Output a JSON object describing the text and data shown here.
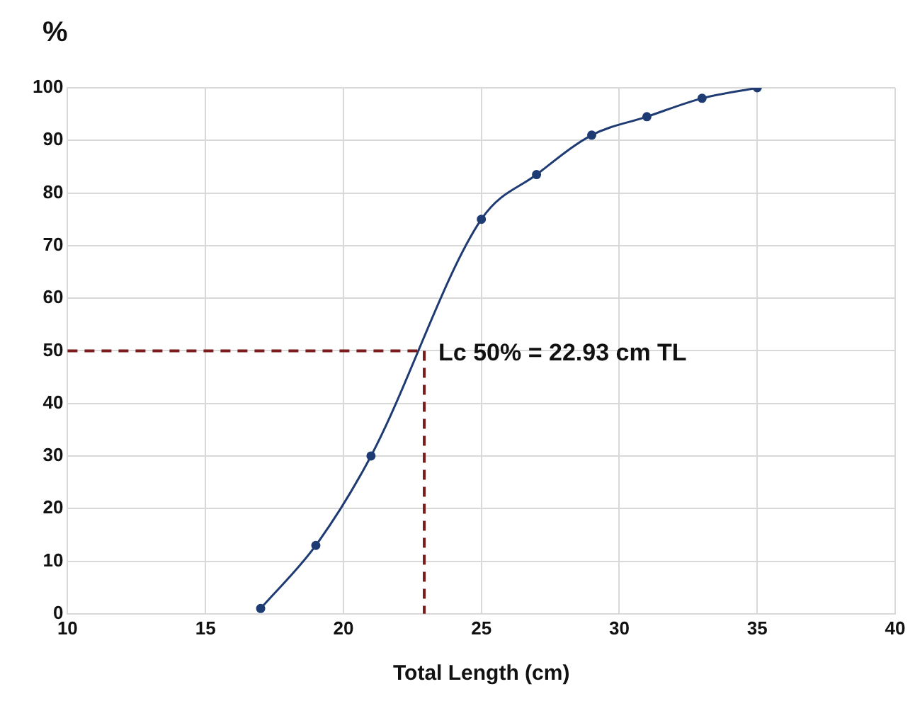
{
  "chart_data": {
    "type": "line",
    "xlabel": "Total Length (cm)",
    "ylabel": "%",
    "x": [
      17,
      19,
      21,
      25,
      27,
      29,
      31,
      33,
      35
    ],
    "series": [
      {
        "color": "#1f3b73",
        "values": [
          1,
          13,
          30,
          75,
          83.5,
          91,
          94.5,
          98,
          100
        ]
      }
    ],
    "xlim": [
      10,
      40
    ],
    "xticks": [
      10,
      15,
      20,
      25,
      30,
      35,
      40
    ],
    "ylim": [
      0,
      100
    ],
    "yticks": [
      0,
      10,
      20,
      30,
      40,
      50,
      60,
      70,
      80,
      90,
      100
    ],
    "annotations": [
      {
        "text": "Lc 50% = 22.93 cm TL",
        "x": 22.93,
        "y": 50
      }
    ],
    "grid": true,
    "legend": false,
    "marker": "circle",
    "line_style": "solid"
  }
}
